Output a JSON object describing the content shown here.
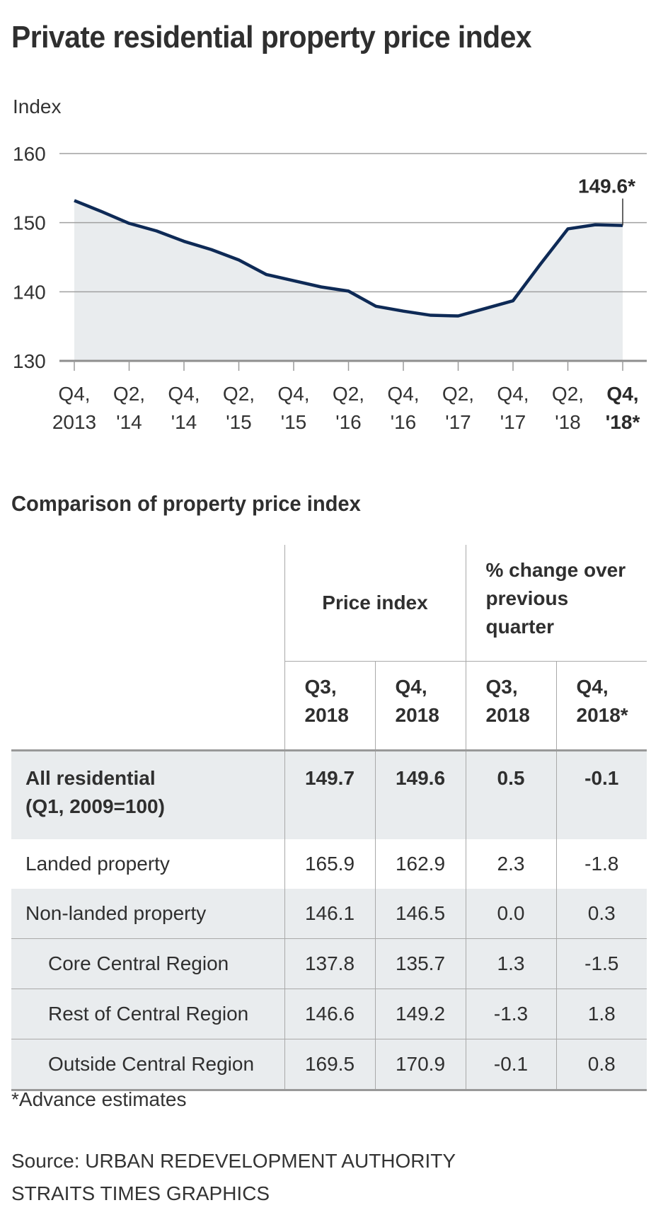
{
  "title": "Private residential property price index",
  "chart_data": {
    "type": "area",
    "title": "Private residential property price index",
    "ylabel": "Index",
    "xlabel": "",
    "ylim": [
      130,
      160
    ],
    "yticks": [
      130,
      140,
      150,
      160
    ],
    "grid": true,
    "x": [
      "Q4 2013",
      "Q1 2014",
      "Q2 2014",
      "Q3 2014",
      "Q4 2014",
      "Q1 2015",
      "Q2 2015",
      "Q3 2015",
      "Q4 2015",
      "Q1 2016",
      "Q2 2016",
      "Q3 2016",
      "Q4 2016",
      "Q1 2017",
      "Q2 2017",
      "Q3 2017",
      "Q4 2017",
      "Q1 2018",
      "Q2 2018",
      "Q3 2018",
      "Q4 2018"
    ],
    "series": [
      {
        "name": "Private residential property price index",
        "values": [
          153.2,
          151.6,
          149.9,
          148.8,
          147.3,
          146.1,
          144.6,
          142.5,
          141.6,
          140.7,
          140.1,
          137.9,
          137.2,
          136.6,
          136.5,
          137.6,
          138.7,
          144.0,
          149.1,
          149.7,
          149.6
        ]
      }
    ],
    "xtick_labels": [
      {
        "line1": "Q4,",
        "line2": "2013",
        "bold": false
      },
      {
        "line1": "Q2,",
        "line2": "'14",
        "bold": false
      },
      {
        "line1": "Q4,",
        "line2": "'14",
        "bold": false
      },
      {
        "line1": "Q2,",
        "line2": "'15",
        "bold": false
      },
      {
        "line1": "Q4,",
        "line2": "'15",
        "bold": false
      },
      {
        "line1": "Q2,",
        "line2": "'16",
        "bold": false
      },
      {
        "line1": "Q4,",
        "line2": "'16",
        "bold": false
      },
      {
        "line1": "Q2,",
        "line2": "'17",
        "bold": false
      },
      {
        "line1": "Q4,",
        "line2": "'17",
        "bold": false
      },
      {
        "line1": "Q2,",
        "line2": "'18",
        "bold": false
      },
      {
        "line1": "Q4,",
        "line2": "'18*",
        "bold": true
      }
    ],
    "annotation": {
      "text": "149.6*",
      "at": "Q4 2018"
    },
    "colors": {
      "line": "#0e2a56",
      "fill": "#e9ecee",
      "grid": "#a0a0a0"
    }
  },
  "table": {
    "title": "Comparison of property price index",
    "group_headers": [
      "Price index",
      "% change over previous quarter"
    ],
    "sub_headers": [
      {
        "line1": "Q3,",
        "line2": "2018"
      },
      {
        "line1": "Q4,",
        "line2": "2018"
      },
      {
        "line1": "Q3,",
        "line2": "2018"
      },
      {
        "line1": "Q4,",
        "line2": "2018*"
      }
    ],
    "rows": [
      {
        "label": "All residential",
        "label2": "(Q1, 2009=100)",
        "values": [
          "149.7",
          "149.6",
          "0.5",
          "-0.1"
        ]
      },
      {
        "label": "Landed property",
        "values": [
          "165.9",
          "162.9",
          "2.3",
          "-1.8"
        ]
      },
      {
        "label": "Non-landed property",
        "values": [
          "146.1",
          "146.5",
          "0.0",
          "0.3"
        ]
      },
      {
        "label": "Core Central Region",
        "values": [
          "137.8",
          "135.7",
          "1.3",
          "-1.5"
        ]
      },
      {
        "label": "Rest of Central Region",
        "values": [
          "146.6",
          "149.2",
          "-1.3",
          "1.8"
        ]
      },
      {
        "label": "Outside Central Region",
        "values": [
          "169.5",
          "170.9",
          "-0.1",
          "0.8"
        ]
      }
    ]
  },
  "footnote": "*Advance estimates",
  "source_line1": "Source: URBAN REDEVELOPMENT AUTHORITY",
  "source_line2": "STRAITS TIMES GRAPHICS"
}
